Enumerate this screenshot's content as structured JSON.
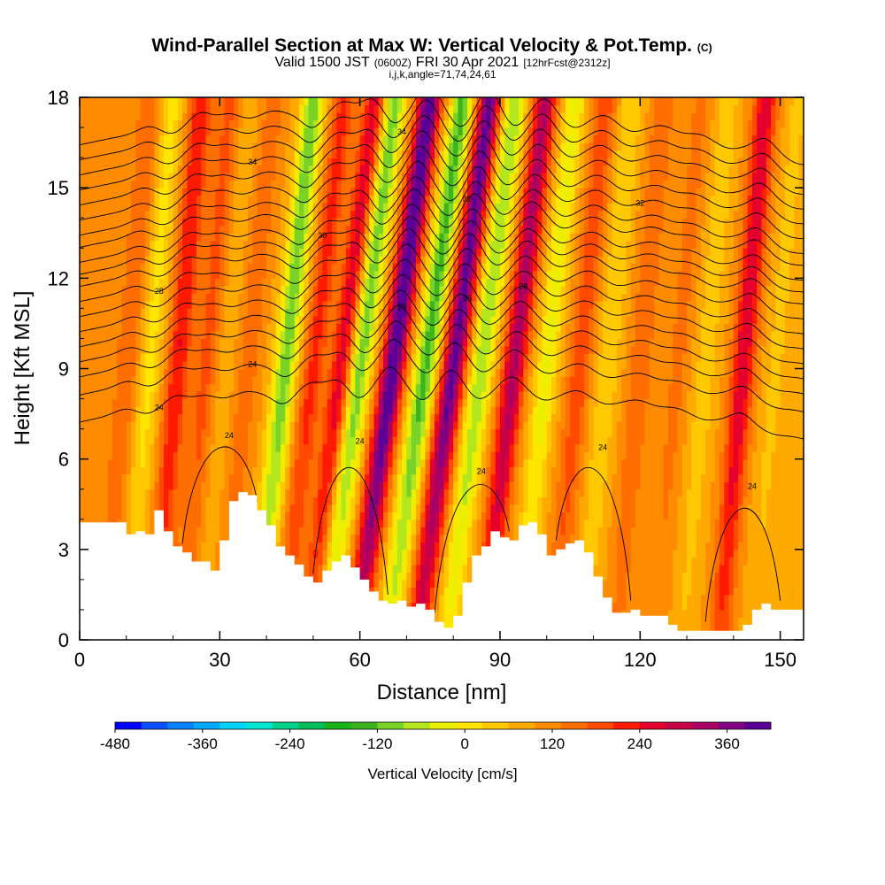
{
  "title": {
    "main": "Wind-Parallel Section at Max W: Vertical Velocity & Pot.Temp.",
    "mark": "(C)",
    "valid_pre": "Valid 1500 JST",
    "valid_zone": "(0600Z)",
    "valid_post": "FRI 30 Apr 2021",
    "valid_fcst": "[12hrFcst@2312z]",
    "indices": "i,j,k,angle=71,74,24,61"
  },
  "chart_data": {
    "type": "heatmap",
    "xlabel": "Distance [nm]",
    "ylabel": "Height [Kft MSL]",
    "xlim": [
      0,
      155
    ],
    "ylim": [
      0,
      18
    ],
    "x_ticks": [
      0,
      30,
      60,
      90,
      120,
      150
    ],
    "y_ticks": [
      0,
      3,
      6,
      9,
      12,
      15,
      18
    ],
    "colorbar": {
      "label": "Vertical Velocity [cm/s]",
      "min": -480,
      "max": 420,
      "step": 30,
      "tick_values": [
        -480,
        -360,
        -240,
        -120,
        0,
        120,
        240,
        360
      ],
      "tick_labels": [
        "-480",
        "-360",
        "-240",
        "-120",
        "0",
        "120",
        "240",
        "360"
      ],
      "colors": [
        "#0000ff",
        "#0a50ff",
        "#0a82ff",
        "#00aaff",
        "#00d4ff",
        "#00e6d2",
        "#00d28c",
        "#00be5a",
        "#18b418",
        "#3cb41e",
        "#78d228",
        "#b4e61e",
        "#ecf000",
        "#ffe600",
        "#ffc800",
        "#ffaa00",
        "#ff8c00",
        "#ff6e00",
        "#ff4a00",
        "#ff1a00",
        "#e6002e",
        "#c80046",
        "#aa0064",
        "#820082",
        "#5a0096"
      ]
    },
    "vertical_velocity_bands": [
      {
        "x": 10,
        "w": 60
      },
      {
        "x": 15,
        "w": -70
      },
      {
        "x": 21,
        "w": 120
      },
      {
        "x": 27,
        "w": 70
      },
      {
        "x": 31,
        "w": -20
      },
      {
        "x": 36,
        "w": 50
      },
      {
        "x": 44,
        "w": -170
      },
      {
        "x": 50,
        "w": 100
      },
      {
        "x": 56,
        "w": 140
      },
      {
        "x": 60,
        "w": -170
      },
      {
        "x": 67,
        "w": 280
      },
      {
        "x": 74,
        "w": -190
      },
      {
        "x": 80,
        "w": 250
      },
      {
        "x": 86,
        "w": -150
      },
      {
        "x": 93,
        "w": 190
      },
      {
        "x": 100,
        "w": -100
      },
      {
        "x": 107,
        "w": 80
      },
      {
        "x": 113,
        "w": -60
      },
      {
        "x": 120,
        "w": 60
      },
      {
        "x": 128,
        "w": 40
      },
      {
        "x": 134,
        "w": -50
      },
      {
        "x": 142,
        "w": 150
      },
      {
        "x": 149,
        "w": -40
      }
    ],
    "terrain": {
      "x": [
        0,
        8,
        10,
        12,
        14,
        16,
        18,
        20,
        22,
        24,
        26,
        28,
        30,
        32,
        34,
        36,
        38,
        40,
        42,
        44,
        46,
        48,
        50,
        52,
        54,
        56,
        58,
        60,
        62,
        64,
        66,
        68,
        70,
        72,
        74,
        76,
        78,
        80,
        82,
        84,
        86,
        88,
        90,
        92,
        94,
        96,
        98,
        100,
        102,
        104,
        106,
        108,
        110,
        112,
        114,
        116,
        118,
        120,
        122,
        124,
        126,
        128,
        130,
        132,
        134,
        136,
        138,
        140,
        142,
        144,
        146,
        148,
        150,
        152,
        155
      ],
      "height_kft": [
        3.9,
        3.9,
        3.5,
        3.6,
        3.5,
        4.3,
        3.6,
        3.1,
        2.9,
        2.6,
        2.6,
        2.3,
        3.3,
        4.6,
        4.9,
        4.8,
        4.3,
        3.8,
        3.1,
        2.8,
        2.5,
        2.1,
        1.9,
        2.3,
        2.6,
        2.8,
        2.4,
        2.0,
        1.6,
        1.3,
        1.2,
        1.3,
        1.1,
        1.2,
        1.0,
        0.6,
        0.4,
        0.8,
        1.9,
        2.8,
        3.1,
        3.6,
        3.4,
        3.3,
        3.8,
        3.9,
        3.5,
        2.8,
        3.0,
        3.2,
        3.3,
        2.9,
        2.1,
        1.4,
        0.9,
        0.9,
        1.0,
        0.8,
        0.8,
        0.8,
        0.5,
        0.3,
        0.3,
        0.3,
        0.3,
        0.3,
        0.3,
        0.3,
        0.5,
        1.0,
        1.2,
        1.0,
        1.0,
        1.0,
        1.0
      ]
    },
    "isentropes": {
      "x_knots": [
        0,
        12,
        24,
        38,
        50,
        60,
        67,
        74,
        80,
        86,
        93,
        100,
        108,
        116,
        126,
        134,
        142,
        150,
        155
      ],
      "levels": [
        {
          "h": 8.4,
          "label": "24"
        },
        {
          "h": 9.3,
          "label": "24"
        },
        {
          "h": 9.9,
          "label": ""
        },
        {
          "h": 10.4,
          "label": "26"
        },
        {
          "h": 10.9,
          "label": "26"
        },
        {
          "h": 11.4,
          "label": "28"
        },
        {
          "h": 11.9,
          "label": ""
        },
        {
          "h": 12.4,
          "label": "28"
        },
        {
          "h": 12.9,
          "label": ""
        },
        {
          "h": 13.3,
          "label": "30"
        },
        {
          "h": 13.7,
          "label": ""
        },
        {
          "h": 14.2,
          "label": "32"
        },
        {
          "h": 14.6,
          "label": ""
        },
        {
          "h": 15.1,
          "label": "32"
        },
        {
          "h": 15.6,
          "label": ""
        },
        {
          "h": 16.1,
          "label": "34"
        },
        {
          "h": 16.6,
          "label": ""
        },
        {
          "h": 17.1,
          "label": "34"
        },
        {
          "h": 17.6,
          "label": ""
        }
      ],
      "low_labels": [
        "24",
        "24",
        "24",
        "24",
        "24"
      ]
    }
  }
}
